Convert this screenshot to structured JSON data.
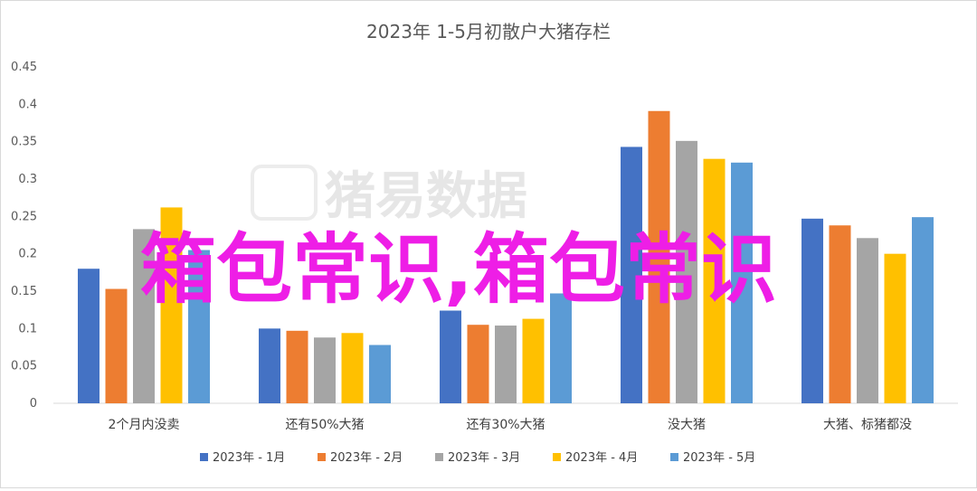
{
  "chart_data": {
    "type": "bar",
    "title": "2023年 1-5月初散户大猪存栏",
    "categories": [
      "2个月内没卖",
      "还有50%大猪",
      "还有30%大猪",
      "没大猪",
      "大猪、标猪都没"
    ],
    "series": [
      {
        "name": "2023年 - 1月",
        "color": "#4472c4",
        "values": [
          0.18,
          0.1,
          0.124,
          0.343,
          0.247
        ]
      },
      {
        "name": "2023年 - 2月",
        "color": "#ed7d31",
        "values": [
          0.153,
          0.097,
          0.105,
          0.391,
          0.238
        ]
      },
      {
        "name": "2023年 - 3月",
        "color": "#a5a5a5",
        "values": [
          0.233,
          0.088,
          0.104,
          0.351,
          0.221
        ]
      },
      {
        "name": "2023年 - 4月",
        "color": "#ffc000",
        "values": [
          0.262,
          0.094,
          0.113,
          0.327,
          0.2
        ]
      },
      {
        "name": "2023年 - 5月",
        "color": "#5b9bd5",
        "values": [
          0.205,
          0.078,
          0.147,
          0.322,
          0.249
        ]
      }
    ],
    "ylim": [
      0,
      0.45
    ],
    "yticks": [
      "0",
      "0.05",
      "0.1",
      "0.15",
      "0.2",
      "0.25",
      "0.3",
      "0.35",
      "0.4",
      "0.45"
    ],
    "grid": false,
    "legend": "bottom"
  },
  "watermark": "猪易数据",
  "overlay_text": "箱包常识,箱包常识"
}
